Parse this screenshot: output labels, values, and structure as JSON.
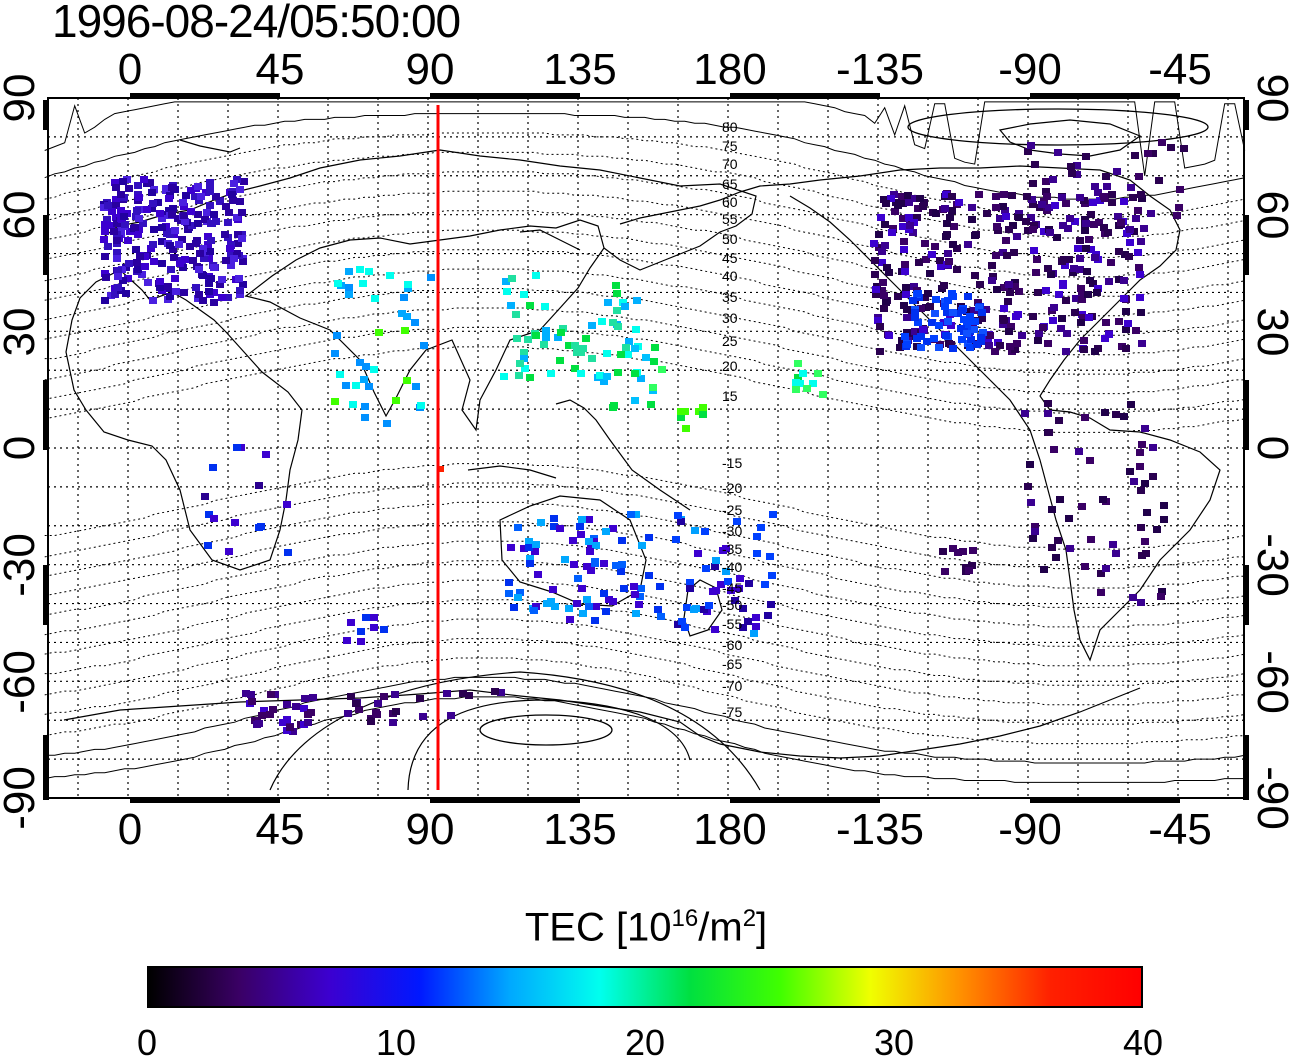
{
  "title": "1996-08-24/05:50:00",
  "map": {
    "lon_ticks_top": [
      "0",
      "45",
      "90",
      "135",
      "180",
      "-135",
      "-90",
      "-45"
    ],
    "lon_ticks_bottom": [
      "0",
      "45",
      "90",
      "135",
      "180",
      "-135",
      "-90",
      "-45"
    ],
    "lat_ticks_left": [
      "90",
      "60",
      "30",
      "0",
      "-30",
      "-60",
      "-90"
    ],
    "lat_ticks_right": [
      "90",
      "60",
      "30",
      "0",
      "-30",
      "-60",
      "-90"
    ],
    "magnetic_latitude_labels": [
      "80",
      "75",
      "70",
      "65",
      "60",
      "55",
      "50",
      "45",
      "40",
      "35",
      "30",
      "25",
      "20",
      "15",
      "-15",
      "-20",
      "-25",
      "-30",
      "-35",
      "-40",
      "-45",
      "-50",
      "-55",
      "-60",
      "-65",
      "-70",
      "-75"
    ],
    "subsolar_meridian_color": "#ff0000",
    "grid": "dotted"
  },
  "colorbar": {
    "title_prefix": "TEC  [10",
    "title_exp": "16",
    "title_mid": "/m",
    "title_exp2": "2",
    "title_suffix": "]",
    "ticks": [
      "0",
      "10",
      "20",
      "30",
      "40"
    ],
    "min": 0,
    "max": 40,
    "colormap": [
      "#000000",
      "#3a0065",
      "#3c00d0",
      "#0018ff",
      "#00a8ff",
      "#00ffee",
      "#00e040",
      "#40ff00",
      "#f0ff00",
      "#ff9000",
      "#ff2000",
      "#ff0000"
    ]
  }
}
